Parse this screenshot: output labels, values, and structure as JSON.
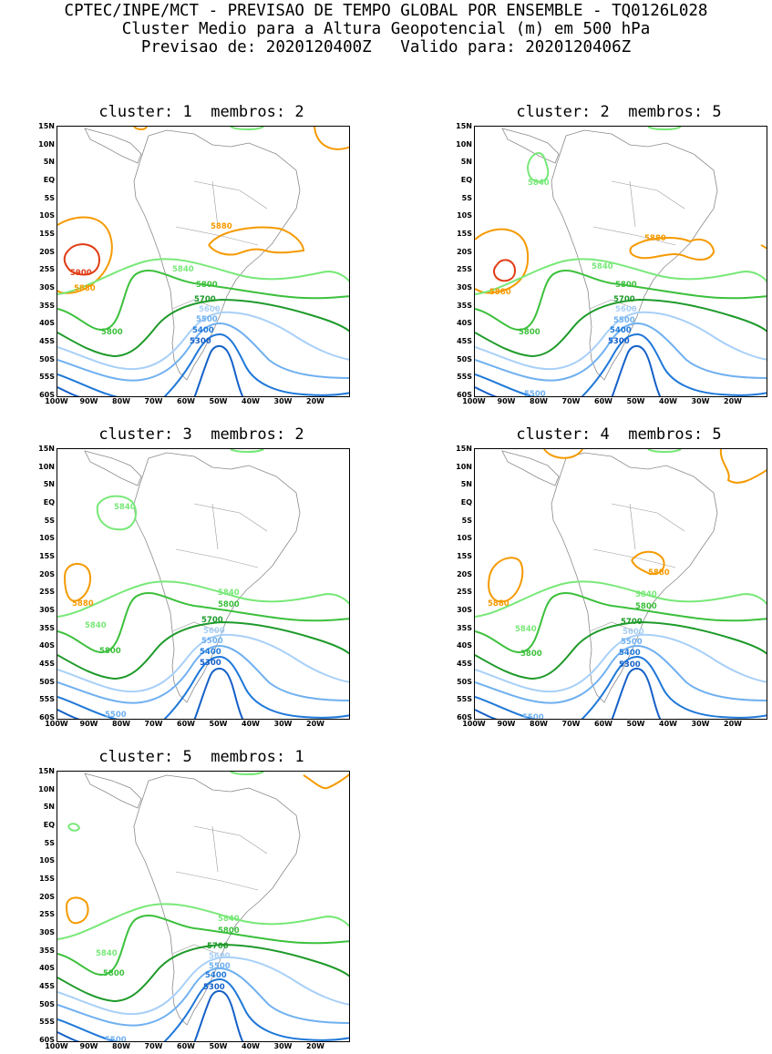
{
  "header": {
    "line1": "CPTEC/INPE/MCT - PREVISAO DE TEMPO GLOBAL POR ENSEMBLE - TQ0126L028",
    "line2": "Cluster Medio para a Altura Geopotencial (m) em 500 hPa",
    "line3": "Previsao de: 2020120400Z   Valido para: 2020120406Z"
  },
  "axes": {
    "lat_labels": [
      "15N",
      "10N",
      "5N",
      "EQ",
      "5S",
      "10S",
      "15S",
      "20S",
      "25S",
      "30S",
      "35S",
      "40S",
      "45S",
      "50S",
      "55S",
      "60S"
    ],
    "lon_labels": [
      "100W",
      "90W",
      "80W",
      "70W",
      "60W",
      "50W",
      "40W",
      "30W",
      "20W"
    ]
  },
  "contour_colors": {
    "5300": "#1560c8",
    "5400": "#1f78d8",
    "5500": "#6fb0f0",
    "5600": "#a8d0f8",
    "5700": "#1e9a2a",
    "5800": "#3cc03c",
    "5840": "#78e878",
    "5880": "#f59a00",
    "5900": "#e03c14"
  },
  "panels": [
    {
      "title": "cluster: 1  membros: 2",
      "labels": [
        {
          "text": "5900",
          "color": "5900",
          "pos": "p1a"
        },
        {
          "text": "5880",
          "color": "5880",
          "pos": "p1b"
        },
        {
          "text": "5880",
          "color": "5880",
          "pos": "p1c"
        },
        {
          "text": "5840",
          "color": "5840",
          "pos": "p1d"
        },
        {
          "text": "5800",
          "color": "5800",
          "pos": "p1e"
        },
        {
          "text": "5800",
          "color": "5800",
          "pos": "p1f"
        },
        {
          "text": "5700",
          "color": "5700",
          "pos": "p1g"
        },
        {
          "text": "5600",
          "color": "5600",
          "pos": "p1h"
        },
        {
          "text": "5500",
          "color": "5500",
          "pos": "p1i"
        },
        {
          "text": "5400",
          "color": "5400",
          "pos": "p1j"
        },
        {
          "text": "5300",
          "color": "5300",
          "pos": "p1k"
        }
      ]
    },
    {
      "title": "cluster: 2  membros: 5",
      "labels": [
        {
          "text": "5840",
          "color": "5840",
          "pos": "p2a"
        },
        {
          "text": "5880",
          "color": "5880",
          "pos": "p2b"
        },
        {
          "text": "5880",
          "color": "5880",
          "pos": "p2c"
        },
        {
          "text": "5840",
          "color": "5840",
          "pos": "p2d"
        },
        {
          "text": "5800",
          "color": "5800",
          "pos": "p2e"
        },
        {
          "text": "5800",
          "color": "5800",
          "pos": "p2f"
        },
        {
          "text": "5700",
          "color": "5700",
          "pos": "p2g"
        },
        {
          "text": "5600",
          "color": "5600",
          "pos": "p2h"
        },
        {
          "text": "5500",
          "color": "5500",
          "pos": "p2i"
        },
        {
          "text": "5400",
          "color": "5400",
          "pos": "p2j"
        },
        {
          "text": "5300",
          "color": "5300",
          "pos": "p2k"
        },
        {
          "text": "5500",
          "color": "5500",
          "pos": "p2l"
        }
      ]
    },
    {
      "title": "cluster: 3  membros: 2",
      "labels": [
        {
          "text": "5840",
          "color": "5840",
          "pos": "p3a"
        },
        {
          "text": "5880",
          "color": "5880",
          "pos": "p3b"
        },
        {
          "text": "5840",
          "color": "5840",
          "pos": "p3c"
        },
        {
          "text": "5840",
          "color": "5840",
          "pos": "p3d"
        },
        {
          "text": "5800",
          "color": "5800",
          "pos": "p3e"
        },
        {
          "text": "5800",
          "color": "5800",
          "pos": "p3f"
        },
        {
          "text": "5700",
          "color": "5700",
          "pos": "p3g"
        },
        {
          "text": "5600",
          "color": "5600",
          "pos": "p3h"
        },
        {
          "text": "5500",
          "color": "5500",
          "pos": "p3i"
        },
        {
          "text": "5400",
          "color": "5400",
          "pos": "p3j"
        },
        {
          "text": "5300",
          "color": "5300",
          "pos": "p3k"
        },
        {
          "text": "5500",
          "color": "5500",
          "pos": "p3l"
        }
      ]
    },
    {
      "title": "cluster: 4  membros: 5",
      "labels": [
        {
          "text": "5880",
          "color": "5880",
          "pos": "p4a"
        },
        {
          "text": "5880",
          "color": "5880",
          "pos": "p4b"
        },
        {
          "text": "5840",
          "color": "5840",
          "pos": "p4c"
        },
        {
          "text": "5840",
          "color": "5840",
          "pos": "p4d"
        },
        {
          "text": "5800",
          "color": "5800",
          "pos": "p4e"
        },
        {
          "text": "5800",
          "color": "5800",
          "pos": "p4f"
        },
        {
          "text": "5700",
          "color": "5700",
          "pos": "p4g"
        },
        {
          "text": "5600",
          "color": "5600",
          "pos": "p4h"
        },
        {
          "text": "5500",
          "color": "5500",
          "pos": "p4i"
        },
        {
          "text": "5400",
          "color": "5400",
          "pos": "p4j"
        },
        {
          "text": "5300",
          "color": "5300",
          "pos": "p4k"
        },
        {
          "text": "5500",
          "color": "5500",
          "pos": "p4l"
        }
      ]
    },
    {
      "title": "cluster: 5  membros: 1",
      "labels": [
        {
          "text": "5840",
          "color": "5840",
          "pos": "p5a"
        },
        {
          "text": "5840",
          "color": "5840",
          "pos": "p5b"
        },
        {
          "text": "5800",
          "color": "5800",
          "pos": "p5c"
        },
        {
          "text": "5800",
          "color": "5800",
          "pos": "p5d"
        },
        {
          "text": "5700",
          "color": "5700",
          "pos": "p5e"
        },
        {
          "text": "5600",
          "color": "5600",
          "pos": "p5f"
        },
        {
          "text": "5500",
          "color": "5500",
          "pos": "p5g"
        },
        {
          "text": "5400",
          "color": "5400",
          "pos": "p5h"
        },
        {
          "text": "5300",
          "color": "5300",
          "pos": "p5i"
        },
        {
          "text": "5500",
          "color": "5500",
          "pos": "p5j"
        }
      ]
    }
  ]
}
